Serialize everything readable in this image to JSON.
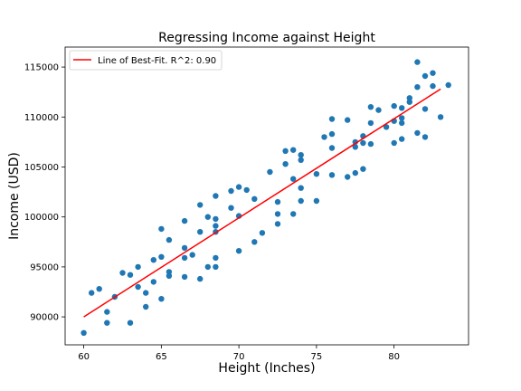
{
  "chart_data": {
    "type": "scatter",
    "title": "Regressing Income against Height",
    "xlabel": "Height (Inches)",
    "ylabel": "Income (USD)",
    "xlim": [
      58.8,
      84.8
    ],
    "ylim": [
      87200,
      117000
    ],
    "x_ticks": [
      60,
      65,
      70,
      75,
      80
    ],
    "y_ticks": [
      90000,
      95000,
      100000,
      105000,
      110000,
      115000
    ],
    "grid": false,
    "legend_position": "upper-left",
    "legend": [
      {
        "label": "Line of Best-Fit. R^2: 0.90",
        "color": "#ff0000",
        "kind": "line"
      }
    ],
    "series": [
      {
        "kind": "points",
        "color": "#1f77b4",
        "points": [
          [
            60.0,
            88400
          ],
          [
            60.5,
            92400
          ],
          [
            61.0,
            92800
          ],
          [
            61.5,
            89400
          ],
          [
            61.5,
            90500
          ],
          [
            62.0,
            92000
          ],
          [
            62.5,
            94400
          ],
          [
            63.0,
            94200
          ],
          [
            63.0,
            89400
          ],
          [
            63.5,
            95000
          ],
          [
            63.5,
            93000
          ],
          [
            64.0,
            91000
          ],
          [
            64.0,
            92400
          ],
          [
            64.5,
            93500
          ],
          [
            64.5,
            95700
          ],
          [
            65.0,
            96000
          ],
          [
            65.0,
            91800
          ],
          [
            65.0,
            98800
          ],
          [
            65.5,
            94500
          ],
          [
            65.5,
            94100
          ],
          [
            65.5,
            97700
          ],
          [
            66.5,
            99600
          ],
          [
            66.5,
            96900
          ],
          [
            66.5,
            94000
          ],
          [
            66.5,
            95900
          ],
          [
            67.0,
            96200
          ],
          [
            67.5,
            93800
          ],
          [
            67.5,
            98500
          ],
          [
            67.5,
            101200
          ],
          [
            68.0,
            100000
          ],
          [
            68.0,
            95000
          ],
          [
            68.5,
            102100
          ],
          [
            68.5,
            99800
          ],
          [
            68.5,
            99100
          ],
          [
            68.5,
            98500
          ],
          [
            68.5,
            95900
          ],
          [
            68.5,
            95000
          ],
          [
            69.5,
            102600
          ],
          [
            69.5,
            100900
          ],
          [
            70.0,
            103000
          ],
          [
            70.0,
            100100
          ],
          [
            70.0,
            96600
          ],
          [
            70.5,
            102700
          ],
          [
            71.0,
            97500
          ],
          [
            71.0,
            101800
          ],
          [
            71.5,
            98400
          ],
          [
            72.0,
            104500
          ],
          [
            72.5,
            101500
          ],
          [
            72.5,
            100300
          ],
          [
            72.5,
            99300
          ],
          [
            73.0,
            106600
          ],
          [
            73.0,
            105300
          ],
          [
            73.5,
            106700
          ],
          [
            73.5,
            103800
          ],
          [
            73.5,
            100300
          ],
          [
            74.0,
            106200
          ],
          [
            74.0,
            105700
          ],
          [
            74.0,
            102900
          ],
          [
            74.0,
            101600
          ],
          [
            75.0,
            104300
          ],
          [
            75.0,
            101600
          ],
          [
            75.5,
            108000
          ],
          [
            76.0,
            109800
          ],
          [
            76.0,
            108300
          ],
          [
            76.0,
            106900
          ],
          [
            76.0,
            104200
          ],
          [
            77.0,
            109700
          ],
          [
            77.0,
            104000
          ],
          [
            77.5,
            107500
          ],
          [
            77.5,
            107000
          ],
          [
            77.5,
            104400
          ],
          [
            78.0,
            108100
          ],
          [
            78.0,
            107400
          ],
          [
            78.0,
            104800
          ],
          [
            78.5,
            111000
          ],
          [
            78.5,
            109400
          ],
          [
            78.5,
            107300
          ],
          [
            79.0,
            110700
          ],
          [
            79.5,
            109000
          ],
          [
            80.0,
            111100
          ],
          [
            80.0,
            109600
          ],
          [
            80.0,
            107400
          ],
          [
            80.5,
            110900
          ],
          [
            80.5,
            109900
          ],
          [
            80.5,
            109400
          ],
          [
            80.5,
            107800
          ],
          [
            81.0,
            111900
          ],
          [
            81.0,
            111500
          ],
          [
            81.5,
            115500
          ],
          [
            81.5,
            113000
          ],
          [
            81.5,
            108400
          ],
          [
            82.0,
            114100
          ],
          [
            82.0,
            110800
          ],
          [
            82.0,
            108000
          ],
          [
            82.5,
            114400
          ],
          [
            82.5,
            113100
          ],
          [
            83.0,
            110000
          ],
          [
            83.5,
            113200
          ]
        ]
      },
      {
        "kind": "line",
        "name": "Line of Best-Fit. R^2: 0.90",
        "color": "#ff0000",
        "x": [
          60.0,
          83.0
        ],
        "y": [
          90000,
          112800
        ]
      }
    ]
  }
}
